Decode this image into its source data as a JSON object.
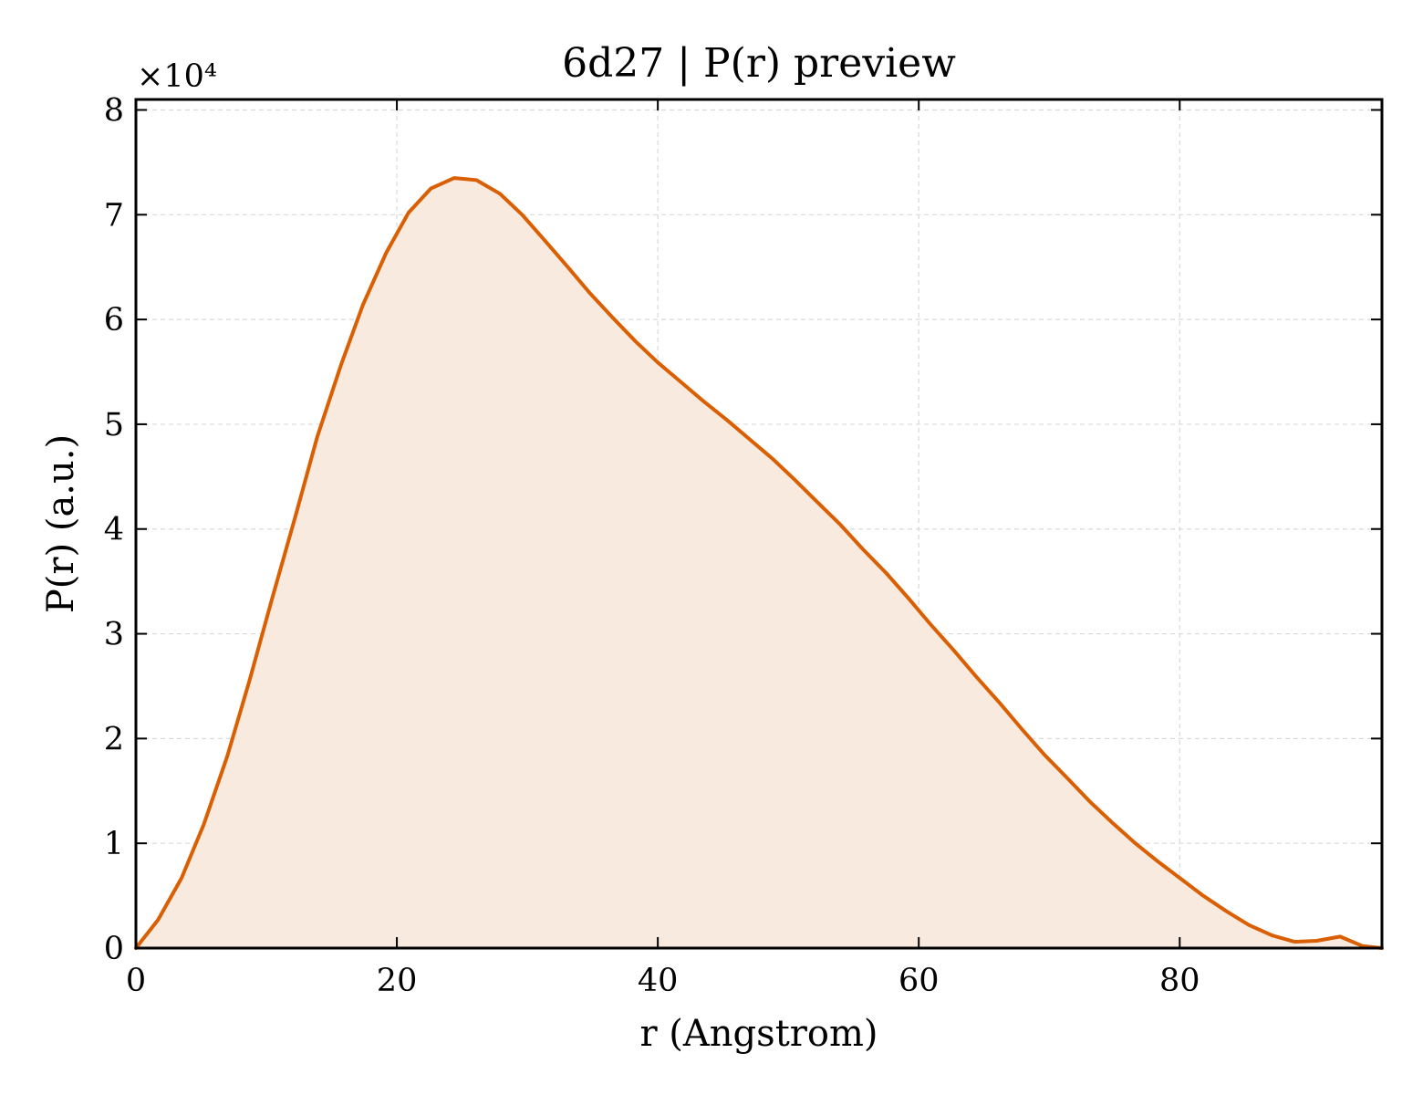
{
  "chart_data": {
    "type": "area",
    "title": "6d27 | P(r) preview",
    "xlabel": "r (Angstrom)",
    "ylabel": "P(r) (a.u.)",
    "y_offset_label": "×10⁴",
    "xlim": [
      0,
      95.5
    ],
    "ylim": [
      0,
      8.1
    ],
    "y_scale_factor": 10000,
    "xticks": [
      0,
      20,
      40,
      60,
      80
    ],
    "yticks": [
      0,
      1,
      2,
      3,
      4,
      5,
      6,
      7,
      8
    ],
    "grid": true,
    "line_color": "#d95f02",
    "fill_color": "#f9eadf",
    "series": [
      {
        "x": [
          0,
          1.7,
          3.5,
          5.2,
          7.0,
          8.7,
          10.4,
          12.2,
          13.9,
          15.7,
          17.4,
          19.2,
          20.9,
          22.6,
          24.4,
          26.1,
          27.9,
          29.6,
          31.3,
          33.1,
          34.8,
          36.6,
          38.3,
          40.0,
          41.8,
          43.5,
          45.3,
          47.0,
          48.8,
          50.5,
          52.2,
          54.0,
          55.7,
          57.5,
          59.2,
          60.9,
          62.7,
          64.4,
          66.2,
          67.9,
          69.6,
          71.4,
          73.1,
          74.9,
          76.6,
          78.4,
          80.1,
          81.8,
          83.6,
          85.3,
          87.1,
          88.8,
          90.5,
          92.3,
          94.0,
          95.5
        ],
        "y": [
          0.0,
          0.27,
          0.67,
          1.18,
          1.83,
          2.55,
          3.32,
          4.11,
          4.88,
          5.56,
          6.14,
          6.64,
          7.02,
          7.25,
          7.35,
          7.33,
          7.2,
          7.0,
          6.76,
          6.5,
          6.25,
          6.01,
          5.79,
          5.59,
          5.4,
          5.22,
          5.04,
          4.86,
          4.67,
          4.47,
          4.26,
          4.04,
          3.81,
          3.58,
          3.34,
          3.09,
          2.84,
          2.59,
          2.34,
          2.09,
          1.85,
          1.62,
          1.4,
          1.19,
          1.0,
          0.82,
          0.66,
          0.5,
          0.35,
          0.22,
          0.12,
          0.06,
          0.07,
          0.11,
          0.02,
          0.0
        ]
      }
    ]
  }
}
